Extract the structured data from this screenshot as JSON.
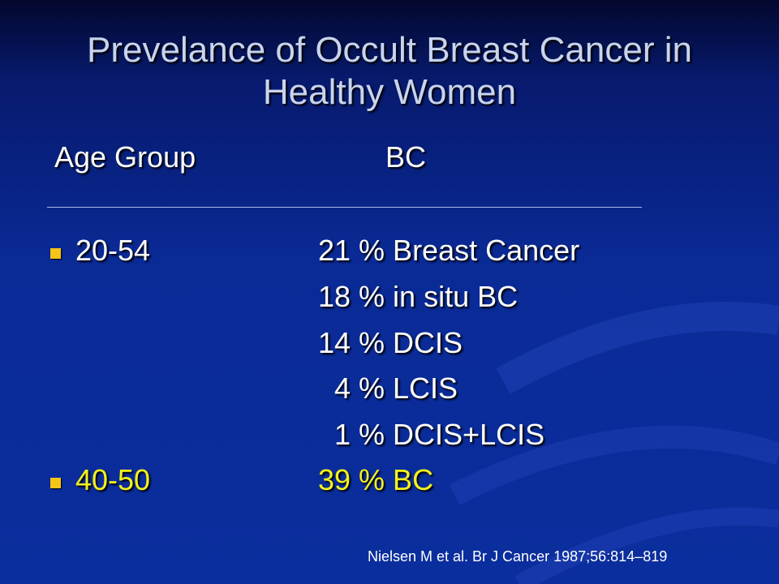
{
  "slide": {
    "title_line1": "Prevelance of Occult Breast Cancer in",
    "title_line2": "Healthy Women",
    "header": {
      "col_age": "Age  Group",
      "col_bc": "BC"
    },
    "groups": [
      {
        "age": "20-54",
        "findings": [
          "21 % Breast Cancer",
          "18 % in situ BC",
          "14 % DCIS",
          "4 % LCIS",
          "1 % DCIS+LCIS"
        ]
      },
      {
        "age": "40-50",
        "findings": [
          "39 % BC"
        ]
      }
    ],
    "citation": "Nielsen M et al. Br J Cancer 1987;56:814–819",
    "colors": {
      "background": "#0b2e9e",
      "title": "#c8d4ee",
      "text": "#ffffff",
      "highlight": "#f5f21a",
      "bullet": "#f5c518"
    }
  }
}
